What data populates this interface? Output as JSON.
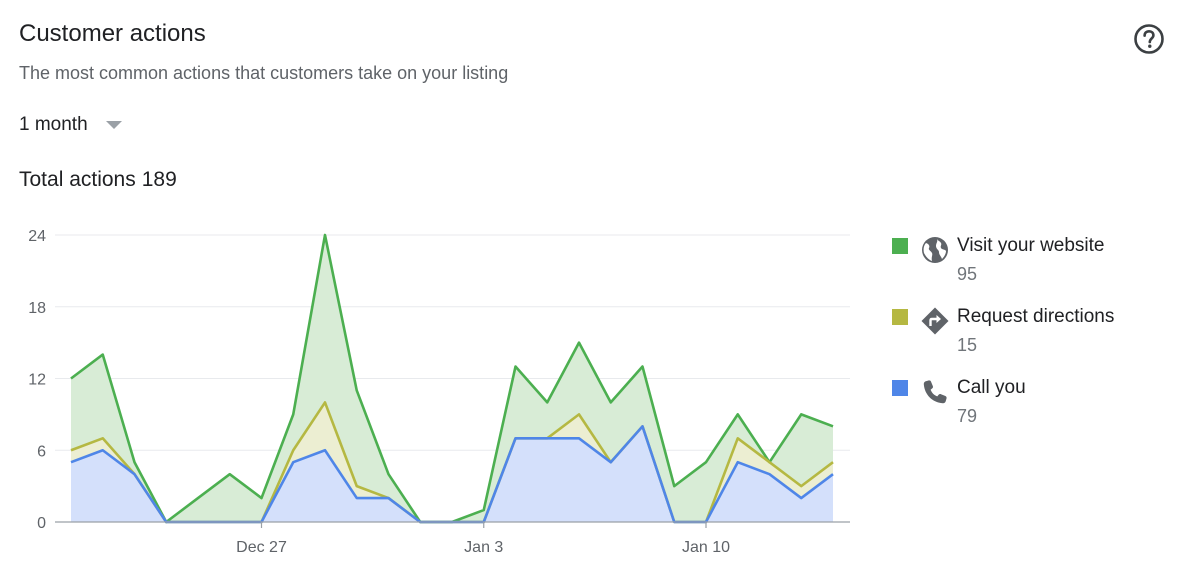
{
  "header": {
    "title": "Customer actions",
    "subtitle": "The most common actions that customers take on your listing",
    "help_icon": "help-circle-icon"
  },
  "range_select": {
    "selected": "1 month"
  },
  "total": {
    "label": "Total actions",
    "value": "189"
  },
  "legend": [
    {
      "label": "Visit your website",
      "value": "95",
      "color": "#4caf50",
      "icon": "globe-icon"
    },
    {
      "label": "Request directions",
      "value": "15",
      "color": "#b5b842",
      "icon": "directions-icon"
    },
    {
      "label": "Call you",
      "value": "79",
      "color": "#4f86e8",
      "icon": "phone-icon"
    }
  ],
  "chart_data": {
    "type": "area",
    "stacked": true,
    "ylim": [
      0,
      24
    ],
    "yticks": [
      0,
      6,
      12,
      18,
      24
    ],
    "xticks": [
      {
        "label": "Dec 27",
        "index": 6
      },
      {
        "label": "Jan 3",
        "index": 13
      },
      {
        "label": "Jan 10",
        "index": 20
      }
    ],
    "x_count": 25,
    "grid": true,
    "legend_position": "right",
    "series": [
      {
        "name": "Call you",
        "color": "#4f86e8",
        "fill": "#d4e0fb",
        "values": [
          5,
          6,
          4,
          0,
          0,
          0,
          0,
          5,
          6,
          2,
          2,
          0,
          0,
          0,
          7,
          7,
          7,
          5,
          8,
          0,
          0,
          5,
          4,
          2,
          4
        ]
      },
      {
        "name": "Request directions",
        "color": "#b5b842",
        "fill": "#eceed2",
        "values": [
          1,
          1,
          0,
          0,
          0,
          0,
          0,
          1,
          4,
          1,
          0,
          0,
          0,
          0,
          0,
          0,
          2,
          0,
          0,
          0,
          0,
          2,
          1,
          1,
          1
        ]
      },
      {
        "name": "Visit your website",
        "color": "#4caf50",
        "fill": "#d8ecd6",
        "values": [
          6,
          7,
          1,
          0,
          2,
          4,
          2,
          3,
          14,
          8,
          2,
          0,
          0,
          1,
          6,
          3,
          6,
          5,
          5,
          3,
          5,
          2,
          0,
          6,
          3
        ]
      }
    ]
  }
}
